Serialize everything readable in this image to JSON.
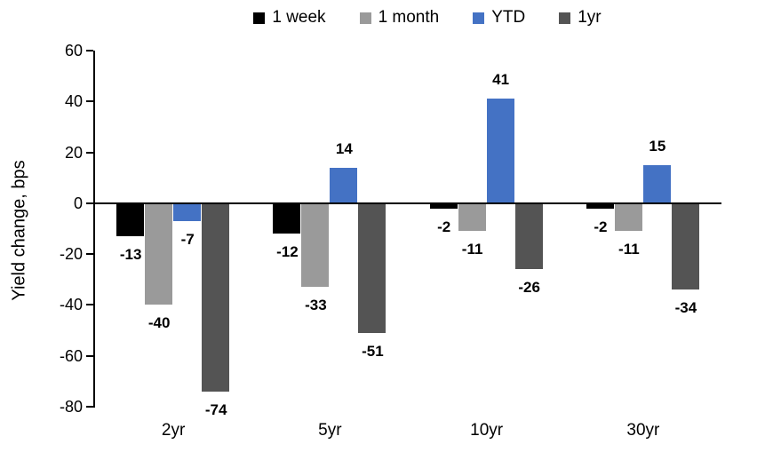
{
  "chart_data": {
    "type": "bar",
    "title": "",
    "ylabel": "Yield change, bps",
    "xlabel": "",
    "categories": [
      "2yr",
      "5yr",
      "10yr",
      "30yr"
    ],
    "series": [
      {
        "name": "1 week",
        "color": "#000000",
        "values": [
          -13,
          -12,
          -2,
          -2
        ]
      },
      {
        "name": "1 month",
        "color": "#9A9A9A",
        "values": [
          -40,
          -33,
          -11,
          -11
        ]
      },
      {
        "name": "YTD",
        "color": "#4472C4",
        "values": [
          -7,
          14,
          41,
          15
        ]
      },
      {
        "name": "1yr",
        "color": "#545454",
        "values": [
          -74,
          -51,
          -26,
          -34
        ]
      }
    ],
    "ylim": [
      -80,
      60
    ],
    "yticks": [
      60,
      40,
      20,
      0,
      -20,
      -40,
      -60,
      -80
    ],
    "grid": false,
    "legend_position": "top",
    "data_labels": "outside-end",
    "axis_color": "#000000"
  }
}
